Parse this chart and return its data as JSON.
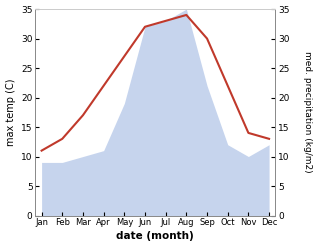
{
  "months": [
    "Jan",
    "Feb",
    "Mar",
    "Apr",
    "May",
    "Jun",
    "Jul",
    "Aug",
    "Sep",
    "Oct",
    "Nov",
    "Dec"
  ],
  "temperature": [
    11,
    13,
    17,
    22,
    27,
    32,
    33,
    34,
    30,
    22,
    14,
    13
  ],
  "precipitation": [
    9,
    9,
    10,
    11,
    19,
    32,
    33,
    35,
    22,
    12,
    10,
    12
  ],
  "temp_color": "#c0392b",
  "precip_color": "#b3c6e8",
  "background_color": "#ffffff",
  "ylabel_left": "max temp (C)",
  "ylabel_right": "med. precipitation (kg/m2)",
  "xlabel": "date (month)",
  "ylim_left": [
    0,
    35
  ],
  "ylim_right": [
    0,
    35
  ],
  "yticks": [
    0,
    5,
    10,
    15,
    20,
    25,
    30,
    35
  ]
}
